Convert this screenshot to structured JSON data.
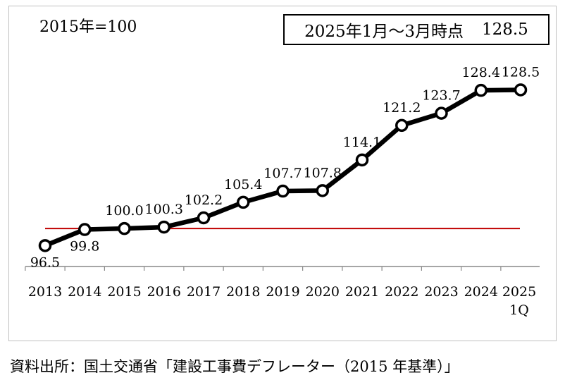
{
  "base_note": "2015年=100",
  "callout": {
    "label": "2025年1月～3月時点",
    "value": "128.5"
  },
  "source": "資料出所：国土交通省「建設工事費デフレーター（2015 年基準）」",
  "chart_data": {
    "type": "line",
    "categories": [
      "2013",
      "2014",
      "2015",
      "2016",
      "2017",
      "2018",
      "2019",
      "2020",
      "2021",
      "2022",
      "2023",
      "2024",
      "2025\n1Q"
    ],
    "tick_lines": [
      [
        "2013"
      ],
      [
        "2014"
      ],
      [
        "2015"
      ],
      [
        "2016"
      ],
      [
        "2017"
      ],
      [
        "2018"
      ],
      [
        "2019"
      ],
      [
        "2020"
      ],
      [
        "2021"
      ],
      [
        "2022"
      ],
      [
        "2023"
      ],
      [
        "2024"
      ],
      [
        "2025",
        "1Q"
      ]
    ],
    "values": [
      96.5,
      99.8,
      100.0,
      100.3,
      102.2,
      105.4,
      107.7,
      107.8,
      114.1,
      121.2,
      123.7,
      128.4,
      128.5
    ],
    "data_labels": [
      "96.5",
      "99.8",
      "100.0",
      "100.3",
      "102.2",
      "105.4",
      "107.7",
      "107.8",
      "114.1",
      "121.2",
      "123.7",
      "128.4",
      "128.5"
    ],
    "reference_line": 100,
    "ylim": [
      92.2,
      134.8
    ],
    "grid": false,
    "legend": "none",
    "colors": {
      "line": "#000000",
      "marker_fill": "#ffffff",
      "reference_line": "#c00000",
      "axis": "#888888"
    }
  }
}
